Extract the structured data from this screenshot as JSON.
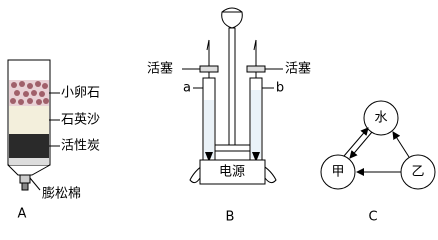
{
  "filter": {
    "label": "A",
    "layers": [
      "小卵石",
      "石英沙",
      "活性炭",
      "膨松棉"
    ]
  },
  "electrolysis": {
    "label": "B",
    "valve_left": "活塞",
    "valve_right": "活塞",
    "tube_left": "a",
    "tube_right": "b",
    "power": "电源"
  },
  "cycle": {
    "label": "C",
    "nodes": [
      "水",
      "甲",
      "乙"
    ]
  }
}
